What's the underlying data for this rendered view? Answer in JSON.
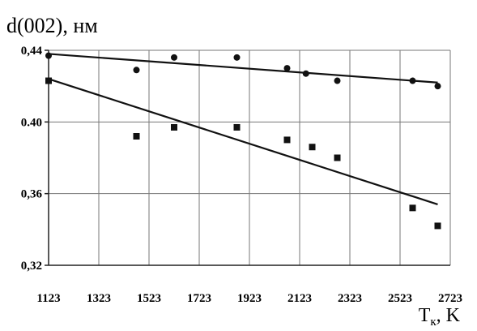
{
  "chart_data": {
    "type": "scatter",
    "ylabel": "d(002), нм",
    "xlabel": {
      "main": "T",
      "sub": "к",
      "unit": ", K"
    },
    "xlim": [
      1123,
      2723
    ],
    "ylim": [
      0.32,
      0.44
    ],
    "xticks": [
      1123,
      1323,
      1523,
      1723,
      1923,
      2123,
      2323,
      2523,
      2723
    ],
    "xtick_labels": [
      "1123",
      "1323",
      "1523",
      "1723",
      "1923",
      "2123",
      "2323",
      "2523",
      "2723"
    ],
    "yticks": [
      0.32,
      0.36,
      0.4,
      0.44
    ],
    "ytick_labels": [
      "0,32",
      "0,36",
      "0.40",
      "0,44"
    ],
    "grid": {
      "x": true,
      "y": true
    },
    "series": [
      {
        "marker": "circle",
        "color": "#111111",
        "points": [
          [
            1123,
            0.437
          ],
          [
            1473,
            0.429
          ],
          [
            1623,
            0.436
          ],
          [
            1873,
            0.436
          ],
          [
            2073,
            0.43
          ],
          [
            2148,
            0.427
          ],
          [
            2273,
            0.423
          ],
          [
            2573,
            0.423
          ],
          [
            2673,
            0.42
          ]
        ],
        "trend": [
          [
            1123,
            0.438
          ],
          [
            2673,
            0.422
          ]
        ]
      },
      {
        "marker": "square",
        "color": "#111111",
        "points": [
          [
            1123,
            0.423
          ],
          [
            1473,
            0.392
          ],
          [
            1623,
            0.397
          ],
          [
            1873,
            0.397
          ],
          [
            2073,
            0.39
          ],
          [
            2173,
            0.386
          ],
          [
            2273,
            0.38
          ],
          [
            2573,
            0.352
          ],
          [
            2673,
            0.342
          ]
        ],
        "trend": [
          [
            1123,
            0.424
          ],
          [
            2673,
            0.354
          ]
        ]
      }
    ]
  }
}
